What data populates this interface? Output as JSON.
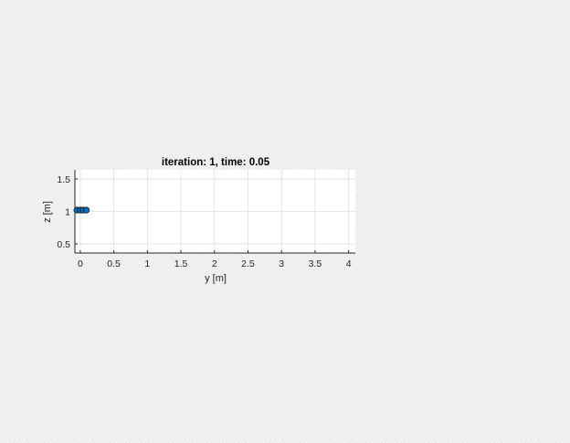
{
  "chart_data": {
    "type": "scatter",
    "title": "iteration: 1, time: 0.05",
    "xlabel": "y [m]",
    "ylabel": "z [m]",
    "xlim": [
      -0.08,
      4.1
    ],
    "ylim": [
      0.36,
      1.64
    ],
    "xticks": [
      0,
      0.5,
      1,
      1.5,
      2,
      2.5,
      3,
      3.5,
      4
    ],
    "yticks": [
      0.5,
      1,
      1.5
    ],
    "grid": true,
    "series": [
      {
        "x": [
          -0.05,
          0.0,
          0.04,
          0.09
        ],
        "y": [
          1.02,
          1.02,
          1.02,
          1.02
        ]
      }
    ],
    "colors": {
      "marker_fill": "#0072bd",
      "marker_edge": "#1a1a1a",
      "axes_bg": "#ffffff",
      "grid": "#dfdfdf"
    }
  }
}
